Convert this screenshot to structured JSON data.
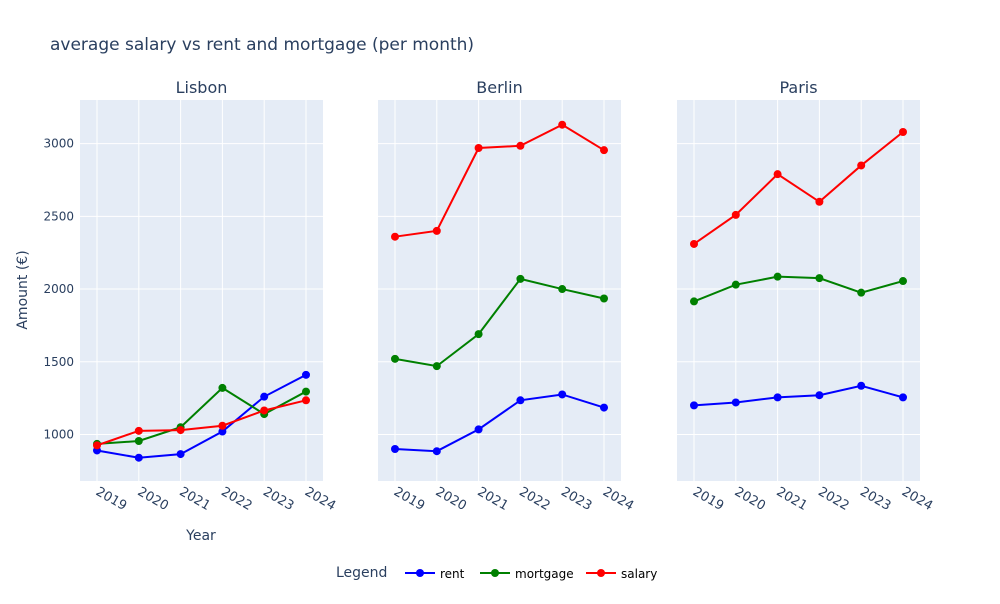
{
  "chart_data": {
    "type": "line",
    "title": "average salary vs rent and mortgage (per month)",
    "xlabel": "Year",
    "ylabel": "Amount (€)",
    "legend_title": "Legend",
    "legend_position": "bottom-center",
    "grid": true,
    "ylim": [
      680,
      3300
    ],
    "yticks": [
      1000,
      1500,
      2000,
      2500,
      3000
    ],
    "categories": [
      "2019",
      "2020",
      "2021",
      "2022",
      "2023",
      "2024"
    ],
    "colors": {
      "rent": "#0000ff",
      "mortgage": "#008000",
      "salary": "#ff0000"
    },
    "legend": [
      {
        "key": "rent",
        "label": "rent"
      },
      {
        "key": "mortgage",
        "label": "mortgage"
      },
      {
        "key": "salary",
        "label": "salary"
      }
    ],
    "panels": [
      {
        "title": "Lisbon",
        "series": [
          {
            "name": "rent",
            "values": [
              890,
              840,
              865,
              1020,
              1260,
              1410
            ]
          },
          {
            "name": "mortgage",
            "values": [
              935,
              955,
              1050,
              1320,
              1140,
              1295
            ]
          },
          {
            "name": "salary",
            "values": [
              925,
              1025,
              1030,
              1060,
              1165,
              1235
            ]
          }
        ]
      },
      {
        "title": "Berlin",
        "series": [
          {
            "name": "rent",
            "values": [
              900,
              885,
              1035,
              1235,
              1275,
              1185
            ]
          },
          {
            "name": "mortgage",
            "values": [
              1520,
              1470,
              1690,
              2070,
              2000,
              1935
            ]
          },
          {
            "name": "salary",
            "values": [
              2360,
              2400,
              2970,
              2985,
              3130,
              2955
            ]
          }
        ]
      },
      {
        "title": "Paris",
        "series": [
          {
            "name": "rent",
            "values": [
              1200,
              1220,
              1255,
              1270,
              1335,
              1255
            ]
          },
          {
            "name": "mortgage",
            "values": [
              1915,
              2030,
              2085,
              2075,
              1975,
              2055
            ]
          },
          {
            "name": "salary",
            "values": [
              2310,
              2510,
              2790,
              2600,
              2850,
              3080
            ]
          }
        ]
      }
    ]
  }
}
